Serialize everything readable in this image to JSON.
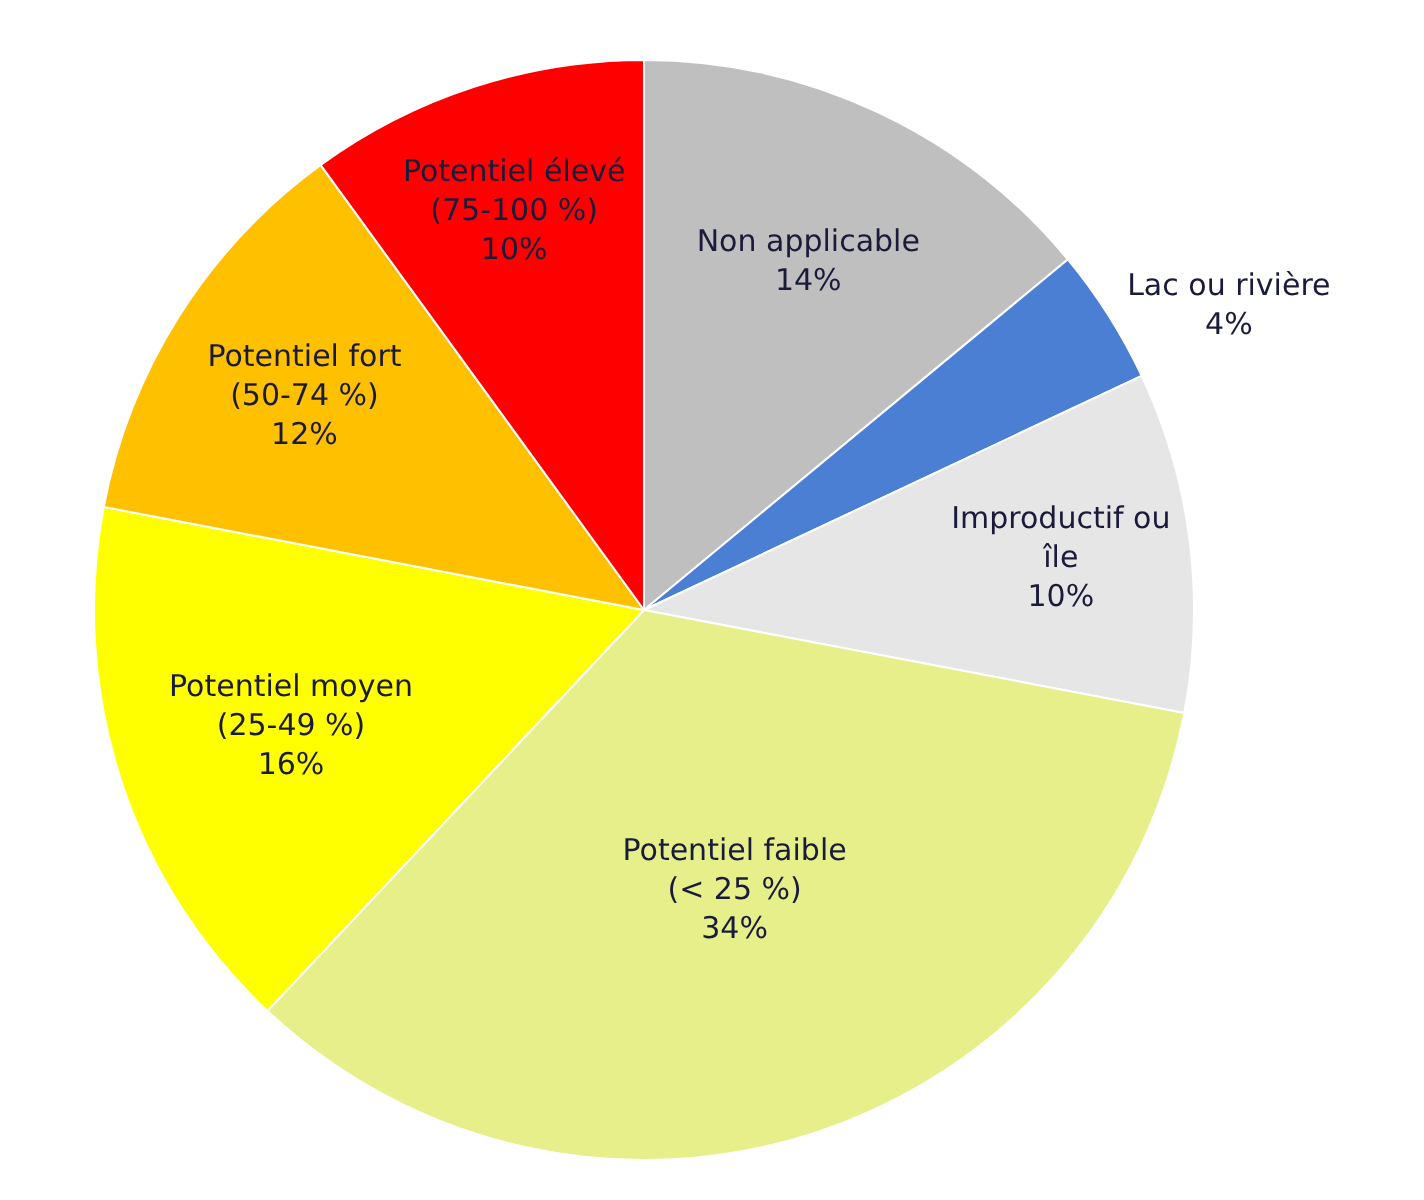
{
  "chart_data": {
    "type": "pie",
    "categories": [
      "Non applicable",
      "Lac ou rivière",
      "Improductif ou\nîle",
      "Potentiel faible\n(< 25 %)",
      "Potentiel moyen\n(25-49 %)",
      "Potentiel fort\n(50-74 %)",
      "Potentiel élevé\n(75-100 %)"
    ],
    "values": [
      14,
      4,
      10,
      34,
      16,
      12,
      10
    ],
    "value_labels": [
      "14%",
      "4%",
      "10%",
      "34%",
      "16%",
      "12%",
      "10%"
    ],
    "colors": [
      "#bfbfbf",
      "#4a7fd4",
      "#e6e6e6",
      "#e6ef8a",
      "#ffff00",
      "#ffc000",
      "#ff0000"
    ],
    "legend": false
  }
}
